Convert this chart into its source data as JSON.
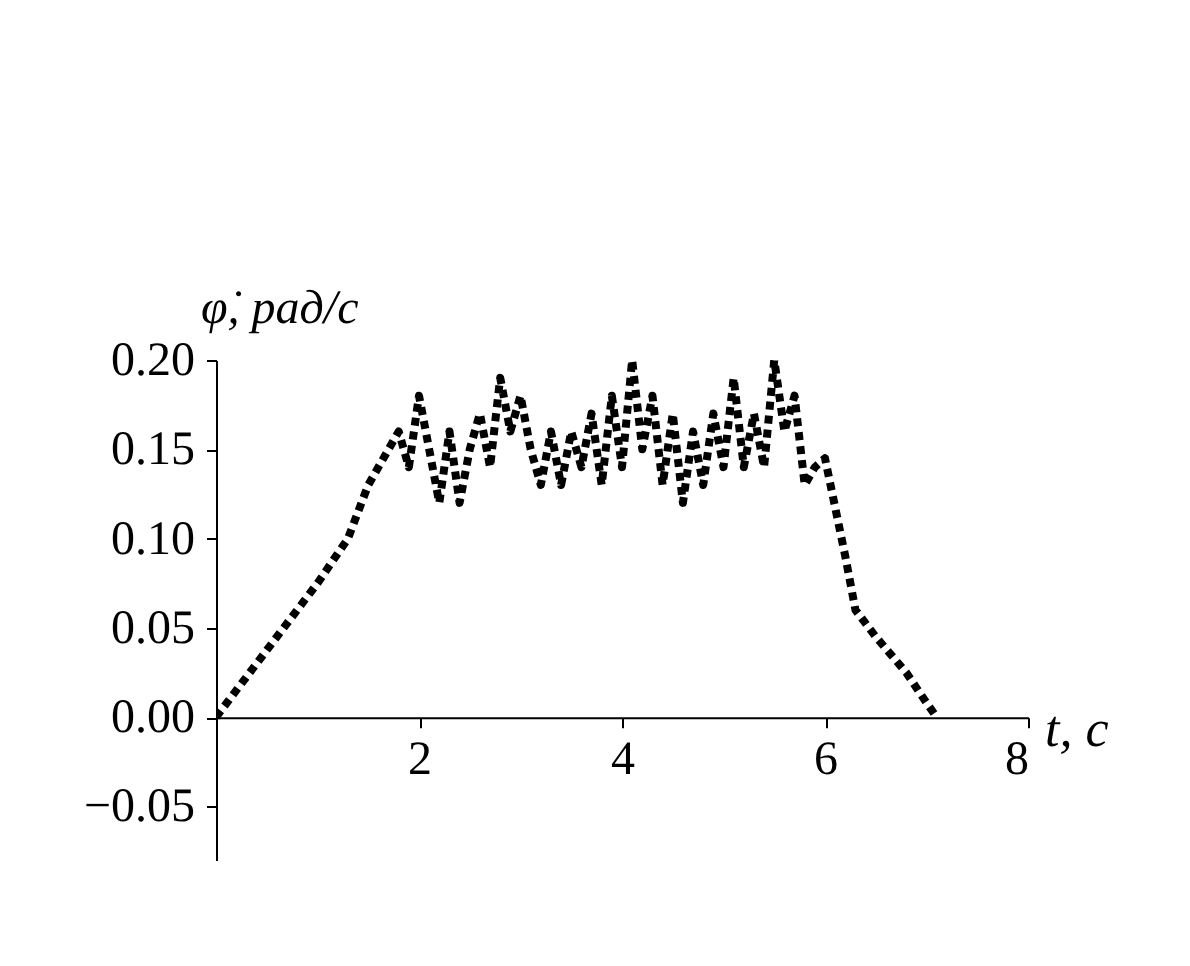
{
  "chart_data": {
    "type": "line",
    "xlabel": "t, с",
    "ylabel": "φ̇, рад/с",
    "line_style": "dotted",
    "marker": "none",
    "grid": false,
    "x": [
      0,
      1,
      1.3,
      1.5,
      1.7,
      1.8,
      1.9,
      2.0,
      2.1,
      2.2,
      2.3,
      2.4,
      2.5,
      2.6,
      2.7,
      2.8,
      2.9,
      3.0,
      3.1,
      3.2,
      3.3,
      3.4,
      3.5,
      3.6,
      3.7,
      3.8,
      3.9,
      4.0,
      4.1,
      4.2,
      4.3,
      4.4,
      4.5,
      4.6,
      4.7,
      4.8,
      4.9,
      5.0,
      5.1,
      5.2,
      5.3,
      5.4,
      5.5,
      5.6,
      5.7,
      5.8,
      5.9,
      6.0,
      6.2,
      6.3,
      6.5,
      6.8,
      7.0,
      7.1
    ],
    "series": [
      {
        "color": "#000000",
        "values": [
          0,
          0.075,
          0.1,
          0.13,
          0.15,
          0.16,
          0.14,
          0.18,
          0.15,
          0.12,
          0.16,
          0.12,
          0.15,
          0.17,
          0.14,
          0.19,
          0.16,
          0.18,
          0.15,
          0.13,
          0.16,
          0.13,
          0.16,
          0.14,
          0.17,
          0.13,
          0.18,
          0.14,
          0.2,
          0.15,
          0.18,
          0.13,
          0.17,
          0.12,
          0.16,
          0.13,
          0.17,
          0.14,
          0.19,
          0.14,
          0.17,
          0.14,
          0.2,
          0.16,
          0.18,
          0.13,
          0.14,
          0.145,
          0.09,
          0.06,
          0.045,
          0.025,
          0.008,
          0
        ]
      }
    ],
    "xlim": [
      0,
      8
    ],
    "ylim": [
      -0.08,
      0.2
    ],
    "xticks": [
      {
        "value": 0,
        "label": null
      },
      2,
      4,
      6,
      8
    ],
    "yticks": [
      {
        "value": -0.05,
        "label": "−0.05"
      },
      {
        "value": 0,
        "label": "0.00"
      },
      {
        "value": 0.05,
        "label": "0.05"
      },
      {
        "value": 0.1,
        "label": "0.10"
      },
      {
        "value": 0.15,
        "label": "0.15"
      },
      {
        "value": 0.2,
        "label": "0.20"
      }
    ]
  }
}
